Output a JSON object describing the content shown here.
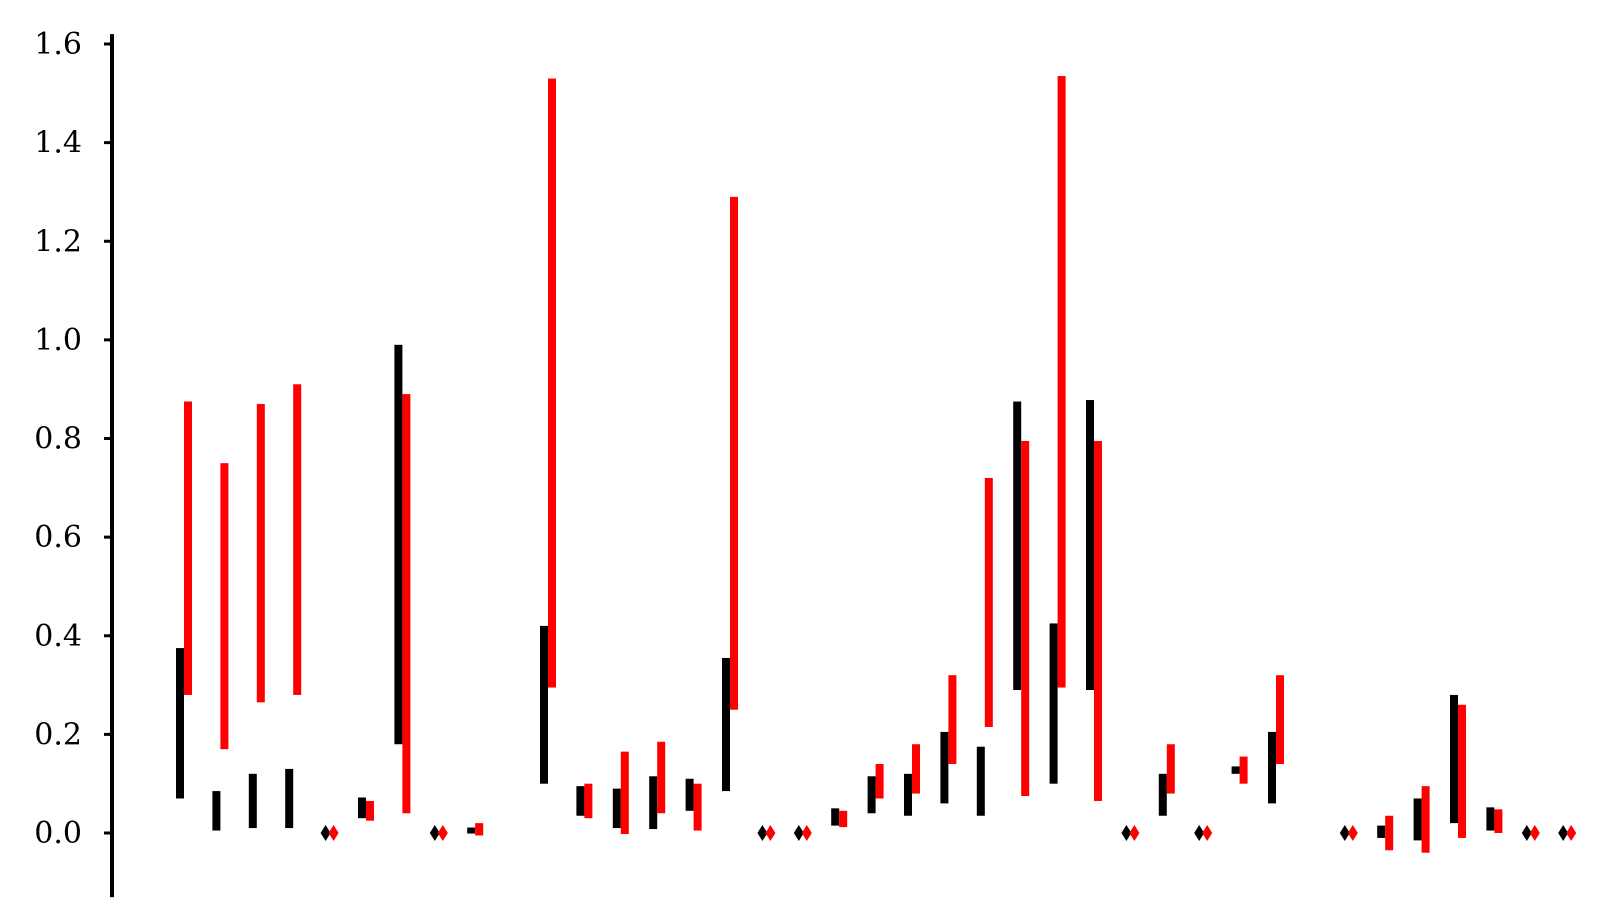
{
  "chart_data": {
    "type": "range-bar",
    "title": "",
    "xlabel": "",
    "ylabel": "",
    "ylim": [
      -0.13,
      1.62
    ],
    "yticks": [
      0.0,
      0.2,
      0.4,
      0.6,
      0.8,
      1.0,
      1.2,
      1.4,
      1.6
    ],
    "ytick_labels": [
      "0.0",
      "0.2",
      "0.4",
      "0.6",
      "0.8",
      "1.0",
      "1.2",
      "1.4",
      "1.6"
    ],
    "grid": false,
    "colors": {
      "black_series": "#000000",
      "red_series": "#ff0000"
    },
    "groups": [
      {
        "black": [
          0.07,
          0.375
        ],
        "red": [
          0.28,
          0.875
        ]
      },
      {
        "black": [
          0.005,
          0.085
        ],
        "red": [
          0.17,
          0.75
        ]
      },
      {
        "black": [
          0.01,
          0.12
        ],
        "red": [
          0.265,
          0.87
        ]
      },
      {
        "black": [
          0.01,
          0.13
        ],
        "red": [
          0.28,
          0.91
        ]
      },
      {
        "black": [
          0.0,
          0.0
        ],
        "red": [
          0.0,
          0.0
        ]
      },
      {
        "black": [
          0.03,
          0.072
        ],
        "red": [
          0.025,
          0.065
        ]
      },
      {
        "black": [
          0.18,
          0.99
        ],
        "red": [
          0.04,
          0.89
        ]
      },
      {
        "black": [
          0.0,
          0.0
        ],
        "red": [
          0.0,
          0.0
        ]
      },
      {
        "black": [
          0.002,
          0.008
        ],
        "red": [
          -0.005,
          0.02
        ]
      },
      null,
      {
        "black": [
          0.1,
          0.42
        ],
        "red": [
          0.295,
          1.53
        ]
      },
      {
        "black": [
          0.035,
          0.095
        ],
        "red": [
          0.03,
          0.1
        ]
      },
      {
        "black": [
          0.01,
          0.09
        ],
        "red": [
          -0.002,
          0.165
        ]
      },
      {
        "black": [
          0.008,
          0.115
        ],
        "red": [
          0.04,
          0.185
        ]
      },
      {
        "black": [
          0.045,
          0.11
        ],
        "red": [
          0.005,
          0.1
        ]
      },
      {
        "black": [
          0.085,
          0.355
        ],
        "red": [
          0.25,
          1.29
        ]
      },
      {
        "black": [
          0.0,
          0.0
        ],
        "red": [
          0.0,
          0.0
        ]
      },
      {
        "black": [
          0.0,
          0.0
        ],
        "red": [
          0.0,
          0.0
        ]
      },
      {
        "black": [
          0.015,
          0.05
        ],
        "red": [
          0.012,
          0.045
        ]
      },
      {
        "black": [
          0.04,
          0.115
        ],
        "red": [
          0.07,
          0.14
        ]
      },
      {
        "black": [
          0.035,
          0.12
        ],
        "red": [
          0.08,
          0.18
        ]
      },
      {
        "black": [
          0.06,
          0.205
        ],
        "red": [
          0.14,
          0.32
        ]
      },
      {
        "black": [
          0.035,
          0.175
        ],
        "red": [
          0.215,
          0.72
        ]
      },
      {
        "black": [
          0.29,
          0.875
        ],
        "red": [
          0.075,
          0.795
        ]
      },
      {
        "black": [
          0.1,
          0.425
        ],
        "red": [
          0.295,
          1.535
        ]
      },
      {
        "black": [
          0.29,
          0.878
        ],
        "red": [
          0.065,
          0.795
        ]
      },
      {
        "black": [
          0.0,
          0.0
        ],
        "red": [
          0.0,
          0.0
        ]
      },
      {
        "black": [
          0.035,
          0.12
        ],
        "red": [
          0.08,
          0.18
        ]
      },
      {
        "black": [
          0.0,
          0.0
        ],
        "red": [
          0.0,
          0.0
        ]
      },
      {
        "black": [
          0.12,
          0.135
        ],
        "red": [
          0.1,
          0.155
        ]
      },
      {
        "black": [
          0.06,
          0.205
        ],
        "red": [
          0.14,
          0.32
        ]
      },
      null,
      {
        "black": [
          0.0,
          0.0
        ],
        "red": [
          0.0,
          0.0
        ]
      },
      {
        "black": [
          -0.01,
          0.015
        ],
        "red": [
          -0.035,
          0.035
        ]
      },
      {
        "black": [
          -0.015,
          0.07
        ],
        "red": [
          -0.04,
          0.095
        ]
      },
      {
        "black": [
          0.02,
          0.28
        ],
        "red": [
          -0.01,
          0.26
        ]
      },
      {
        "black": [
          0.005,
          0.052
        ],
        "red": [
          0.0,
          0.048
        ]
      },
      {
        "black": [
          0.0,
          0.0
        ],
        "red": [
          0.0,
          0.0
        ]
      },
      {
        "black": [
          0.0,
          0.0
        ],
        "red": [
          0.0,
          0.0
        ]
      }
    ]
  }
}
